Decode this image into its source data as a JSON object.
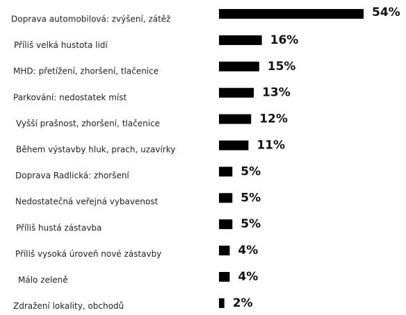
{
  "chart_data": {
    "type": "bar",
    "orientation": "horizontal",
    "categories": [
      "Doprava automobilová: zvýšení, zátěž",
      "Příliš velká hustota lidí",
      "MHD: přetížení, zhoršení, tlačenice",
      "Parkování: nedostatek míst",
      "Vyšší prašnost, zhoršení, tlačenice",
      "Během výstavby hluk, prach, uzavírky",
      "Doprava Radlická: zhoršení",
      "Nedostatečná veřejná vybavenost",
      "Příliš hustá zástavba",
      "Příliš vysoká úroveň nové zástavby",
      "Málo zeleně",
      "Zdražení lokality, obchodů"
    ],
    "values": [
      54,
      16,
      15,
      13,
      12,
      11,
      5,
      5,
      5,
      4,
      4,
      2
    ],
    "value_labels": [
      "54%",
      "16%",
      "15%",
      "13%",
      "12%",
      "11%",
      "5%",
      "5%",
      "5%",
      "4%",
      "4%",
      "2%"
    ],
    "color": "#000000"
  }
}
